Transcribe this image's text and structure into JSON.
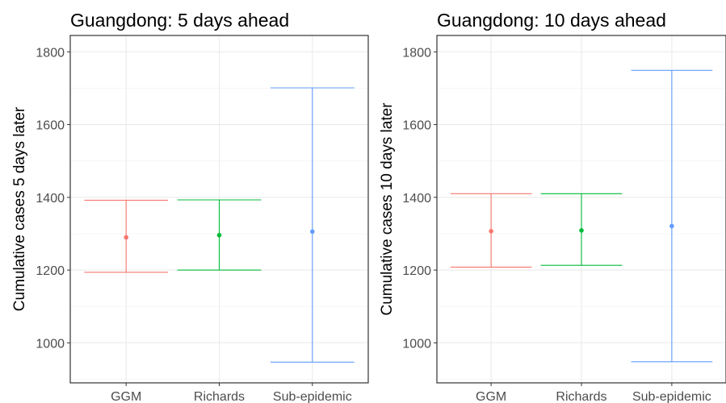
{
  "colors": {
    "GGM": "#F8766D",
    "Richards": "#00BA38",
    "Sub-epidemic": "#619CFF",
    "grid_major": "#EBEBEB",
    "grid_minor": "#F4F4F4",
    "panel_border": "#333333",
    "tick_text": "#4D4D4D",
    "title_text": "#000000"
  },
  "chart_data": [
    {
      "type": "errorbar",
      "title": "Guangdong: 5 days ahead",
      "xlabel": "",
      "ylabel": "Cumulative cases 5 days later",
      "categories": [
        "GGM",
        "Richards",
        "Sub-epidemic"
      ],
      "ylim": [
        890,
        1845
      ],
      "yticks": [
        1000,
        1200,
        1400,
        1600,
        1800
      ],
      "grid": true,
      "legend": "none",
      "estimate": [
        1290,
        1296,
        1306
      ],
      "lower": [
        1194,
        1200,
        947
      ],
      "upper": [
        1392,
        1393,
        1701
      ]
    },
    {
      "type": "errorbar",
      "title": "Guangdong: 10 days ahead",
      "xlabel": "",
      "ylabel": "Cumulative cases 10 days later",
      "categories": [
        "GGM",
        "Richards",
        "Sub-epidemic"
      ],
      "ylim": [
        890,
        1845
      ],
      "yticks": [
        1000,
        1200,
        1400,
        1600,
        1800
      ],
      "grid": true,
      "legend": "none",
      "estimate": [
        1307,
        1309,
        1321
      ],
      "lower": [
        1208,
        1213,
        948
      ],
      "upper": [
        1410,
        1410,
        1749
      ]
    }
  ]
}
